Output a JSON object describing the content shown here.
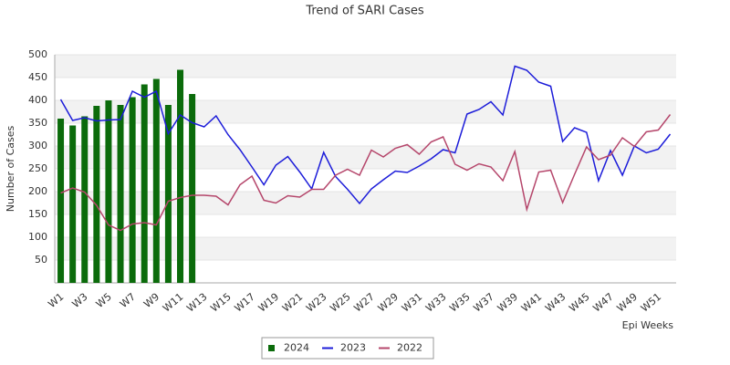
{
  "chart_data": {
    "type": "combo",
    "title": "Trend of SARI Cases",
    "x_label": "Epi Weeks",
    "y_label": "Number of Cases",
    "categories": [
      "W1",
      null,
      "W3",
      null,
      "W5",
      null,
      "W7",
      null,
      "W9",
      null,
      "W11",
      null,
      "W13",
      null,
      "W15",
      null,
      "W17",
      null,
      "W19",
      null,
      "W21",
      null,
      "W23",
      null,
      "W25",
      null,
      "W27",
      null,
      "W29",
      null,
      "W31",
      null,
      "W33",
      null,
      "W35",
      null,
      "W37",
      null,
      "W39",
      null,
      "W41",
      null,
      "W43",
      null,
      "W45",
      null,
      "W47",
      null,
      "W49",
      null,
      "W51",
      null
    ],
    "series": [
      {
        "name": "2024",
        "type": "bar",
        "color": "#0b6b0b",
        "values": [
          360,
          345,
          365,
          388,
          400,
          390,
          407,
          435,
          447,
          390,
          467,
          414,
          null,
          null,
          null,
          null,
          null,
          null,
          null,
          null,
          null,
          null,
          null,
          null,
          null,
          null,
          null,
          null,
          null,
          null,
          null,
          null,
          null,
          null,
          null,
          null,
          null,
          null,
          null,
          null,
          null,
          null,
          null,
          null,
          null,
          null,
          null,
          null,
          null,
          null,
          null,
          null
        ]
      },
      {
        "name": "2023",
        "type": "line",
        "color": "#1c1cd9",
        "values": [
          402,
          356,
          362,
          355,
          357,
          358,
          420,
          407,
          420,
          327,
          368,
          351,
          342,
          366,
          325,
          292,
          254,
          215,
          258,
          277,
          243,
          206,
          286,
          233,
          205,
          174,
          206,
          226,
          245,
          242,
          256,
          272,
          292,
          285,
          370,
          380,
          397,
          368,
          475,
          466,
          440,
          431,
          310,
          340,
          330,
          224,
          290,
          236,
          300,
          285,
          293,
          326
        ]
      },
      {
        "name": "2022",
        "type": "line",
        "color": "#b5466b",
        "values": [
          197,
          208,
          199,
          170,
          127,
          115,
          129,
          132,
          127,
          179,
          187,
          192,
          192,
          190,
          171,
          215,
          234,
          181,
          175,
          191,
          188,
          205,
          205,
          236,
          249,
          236,
          291,
          276,
          295,
          303,
          282,
          309,
          320,
          260,
          247,
          261,
          254,
          224,
          288,
          161,
          243,
          247,
          176,
          238,
          298,
          270,
          280,
          318,
          299,
          331,
          335,
          369
        ]
      }
    ],
    "ylim": [
      0,
      500
    ],
    "yticks": [
      50,
      100,
      150,
      200,
      250,
      300,
      350,
      400,
      450,
      500
    ],
    "grid": true,
    "legend": "bottom"
  }
}
